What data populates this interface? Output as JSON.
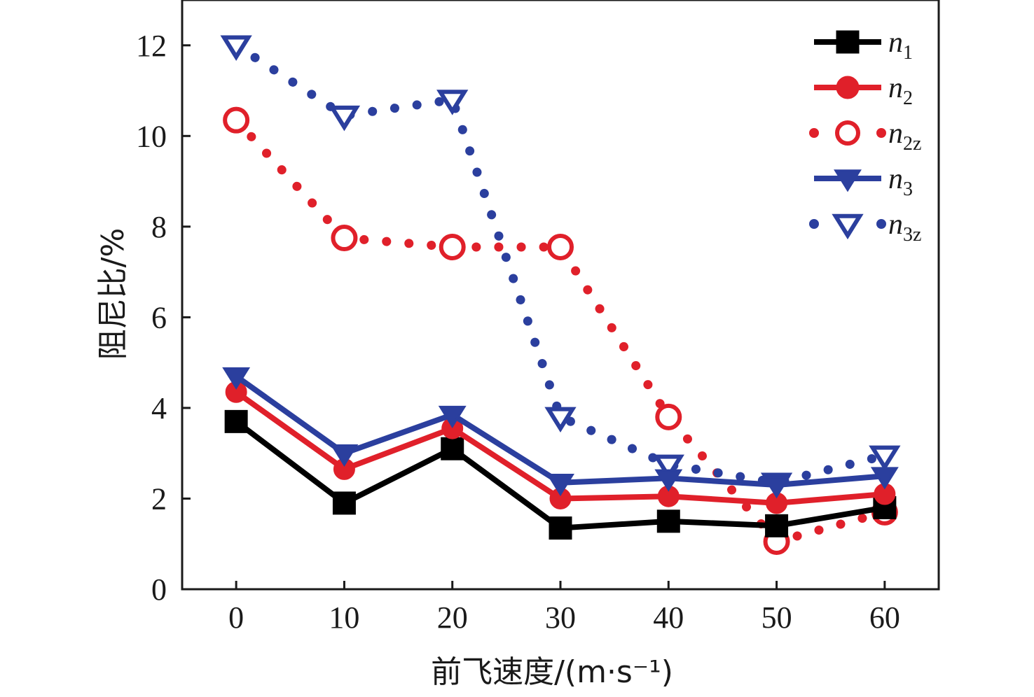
{
  "chart_data": {
    "type": "line",
    "xlabel": "前飞速度/(m·s⁻¹)",
    "ylabel": "阻尼比/%",
    "xlim": [
      -5,
      65
    ],
    "ylim": [
      0,
      13
    ],
    "xticks": [
      0,
      10,
      20,
      30,
      40,
      50,
      60
    ],
    "yticks": [
      0,
      2,
      4,
      6,
      8,
      10,
      12
    ],
    "grid": false,
    "legend_position": "top-right",
    "x": [
      0,
      10,
      20,
      30,
      40,
      50,
      60
    ],
    "series": [
      {
        "name": "n1",
        "name_base": "n",
        "name_sub": "1",
        "color": "#000000",
        "line": "solid",
        "marker": "square",
        "filled": true,
        "values": [
          3.7,
          1.9,
          3.1,
          1.35,
          1.5,
          1.4,
          1.8
        ]
      },
      {
        "name": "n2",
        "name_base": "n",
        "name_sub": "2",
        "color": "#e0202a",
        "line": "solid",
        "marker": "circle",
        "filled": true,
        "values": [
          4.35,
          2.65,
          3.55,
          2.0,
          2.05,
          1.9,
          2.1
        ]
      },
      {
        "name": "n2z",
        "name_base": "n",
        "name_sub": "2z",
        "color": "#e0202a",
        "line": "dotted",
        "marker": "circle",
        "filled": false,
        "values": [
          10.35,
          7.75,
          7.55,
          7.55,
          3.8,
          1.05,
          1.7
        ]
      },
      {
        "name": "n3",
        "name_base": "n",
        "name_sub": "3",
        "color": "#2b3f9e",
        "line": "solid",
        "marker": "triangle-down",
        "filled": true,
        "values": [
          4.7,
          3.0,
          3.85,
          2.35,
          2.45,
          2.3,
          2.5
        ]
      },
      {
        "name": "n3z",
        "name_base": "n",
        "name_sub": "3z",
        "color": "#2b3f9e",
        "line": "dotted",
        "marker": "triangle-down",
        "filled": false,
        "values": [
          12.0,
          10.45,
          10.8,
          3.8,
          2.75,
          2.35,
          2.95
        ]
      }
    ]
  }
}
